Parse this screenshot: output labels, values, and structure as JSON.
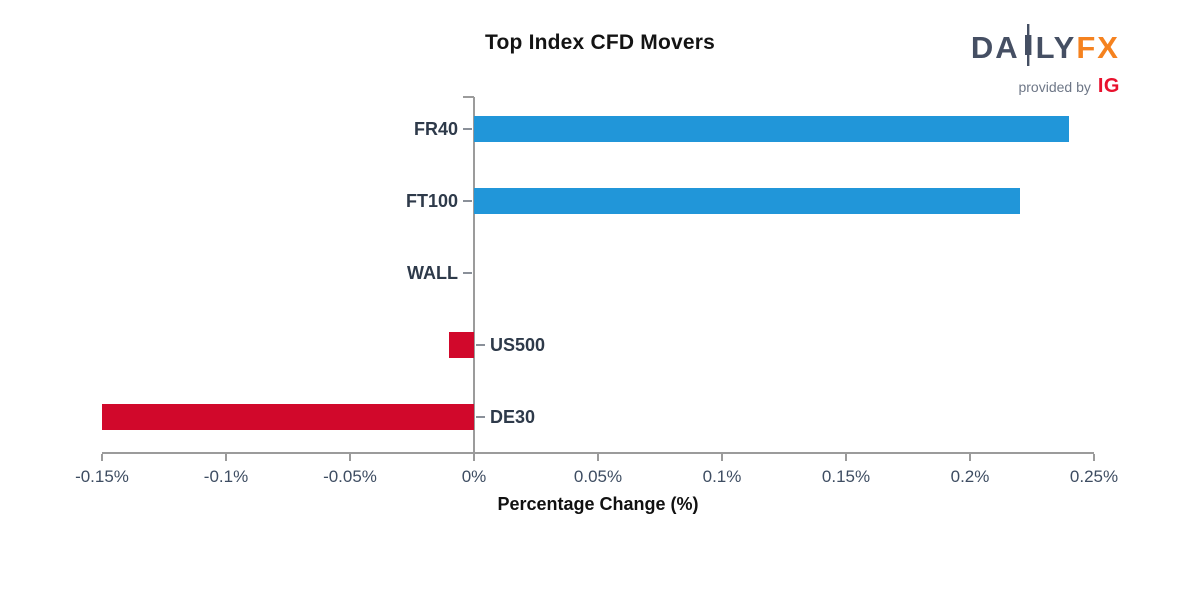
{
  "logo": {
    "brand_part1": "DA",
    "brand_part2": "LY",
    "brand_part3": "FX",
    "tagline": "provided by",
    "provider": "IG",
    "brand_slate": "#454F63",
    "brand_orange": "#F5821F",
    "provider_red": "#E8112D",
    "tagline_gray": "#6E7787"
  },
  "chart_data": {
    "type": "bar",
    "orientation": "horizontal",
    "title": "Top Index CFD Movers",
    "xlabel": "Percentage Change (%)",
    "categories": [
      "FR40",
      "FT100",
      "WALL",
      "US500",
      "DE30"
    ],
    "values": [
      0.24,
      0.22,
      0.0,
      -0.01,
      -0.15
    ],
    "xlim": [
      -0.15,
      0.25
    ],
    "xticks": [
      -0.15,
      -0.1,
      -0.05,
      0,
      0.05,
      0.1,
      0.15,
      0.2,
      0.25
    ],
    "xtick_labels": [
      "-0.15%",
      "-0.1%",
      "-0.05%",
      "0%",
      "0.05%",
      "0.1%",
      "0.15%",
      "0.2%",
      "0.25%"
    ],
    "positive_color": "#2196D9",
    "negative_color": "#D1082B",
    "axis_color": "#9B9B9B",
    "grid": false,
    "legend": null
  }
}
